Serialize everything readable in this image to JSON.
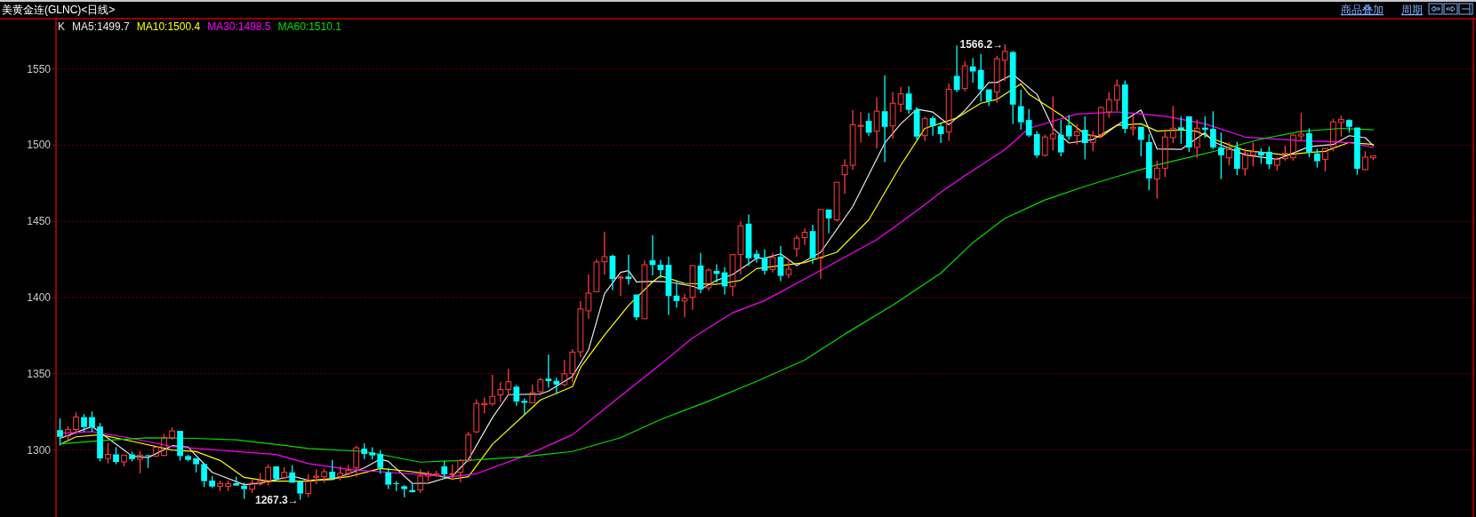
{
  "chart_data": {
    "type": "candlestick",
    "title": "美黄金连(GLNC)<日线>",
    "categories": [
      null,
      null,
      null,
      null,
      null,
      null,
      null,
      null,
      null,
      null,
      null,
      null,
      null,
      null,
      null,
      null,
      null,
      null,
      null,
      null,
      null,
      null,
      null,
      null,
      null,
      null,
      null,
      null,
      null,
      null,
      null,
      null,
      null,
      null,
      null,
      null,
      null,
      null,
      null,
      null,
      null,
      null,
      null,
      null,
      null,
      null,
      null,
      null,
      null,
      null,
      null,
      null,
      null,
      null,
      null,
      null,
      null,
      null,
      null,
      null,
      null,
      null,
      null,
      null,
      null,
      null,
      null,
      null,
      null,
      null,
      null,
      null,
      null,
      null,
      null,
      null,
      null,
      null,
      null,
      null,
      null,
      null,
      null,
      null,
      null,
      null,
      null,
      null,
      null,
      null,
      null,
      null,
      null,
      null,
      null,
      null,
      null,
      null,
      null,
      null,
      null,
      null,
      null,
      null,
      null,
      null,
      null,
      null,
      null,
      null,
      null,
      null,
      null,
      null,
      null,
      null,
      null,
      null,
      null,
      null,
      null,
      null,
      null,
      null,
      null,
      null,
      null,
      null,
      null,
      null,
      null,
      null,
      null,
      null,
      null,
      null,
      null,
      null,
      null,
      null,
      null,
      null,
      null,
      null,
      null,
      null,
      null,
      null,
      null,
      null,
      null,
      null,
      null,
      null,
      null,
      null,
      null,
      null,
      null,
      null,
      null,
      null,
      null,
      null,
      null,
      null,
      null,
      null,
      null,
      null,
      null,
      null,
      null,
      null,
      null,
      null,
      null
    ],
    "ylim": [
      1256,
      1583
    ],
    "yticks": [
      1300,
      1350,
      1400,
      1450,
      1500,
      1550
    ],
    "grid": "y",
    "legend": "top left",
    "legend_title": "K",
    "tick_labels": "y",
    "series": [
      {
        "colors": [
          "#00ffff",
          "#ff3c3c",
          "#ff3c3c",
          "#00ffff",
          "#00ffff",
          "#00ffff",
          "#ff3c3c",
          "#00ffff",
          "#ff3c3c",
          "#00ffff",
          "#ff3c3c",
          "#00ffff",
          "#ff3c3c",
          "#ff3c3c",
          "#ff3c3c",
          "#00ffff",
          "#00ffff",
          "#00ffff",
          "#00ffff",
          "#00ffff",
          "#ff3c3c",
          "#ff3c3c",
          "#00ffff",
          "#00ffff",
          "#ff3c3c",
          "#ff3c3c",
          "#ff3c3c",
          "#00ffff",
          "#ff3c3c",
          "#00ffff",
          "#00ffff",
          "#ff3c3c",
          "#ff3c3c",
          "#ff3c3c",
          "#00ffff",
          "#ff3c3c",
          "#ff3c3c",
          "#ff3c3c",
          "#00ffff",
          "#00ffff",
          "#00ffff",
          "#00ffff",
          "#00ffff",
          "#00ffff",
          "#00ffff",
          "#ff3c3c",
          "#ff3c3c",
          "#ff3c3c",
          "#00ffff",
          "#ff3c3c",
          "#ff3c3c",
          "#ff3c3c",
          "#ff3c3c",
          "#ff3c3c",
          "#ff3c3c",
          "#ff3c3c",
          "#ff3c3c",
          "#00ffff",
          "#00ffff",
          "#ff3c3c",
          "#ff3c3c",
          "#00ffff",
          "#00ffff",
          "#ff3c3c",
          "#ff3c3c",
          "#ff3c3c",
          "#ff3c3c",
          "#ff3c3c",
          "#ff3c3c",
          "#00ffff",
          "#ff3c3c",
          "#00ffff",
          "#00ffff",
          "#ff3c3c",
          "#00ffff",
          "#00ffff",
          "#00ffff",
          "#00ffff",
          "#ff3c3c",
          "#ff3c3c",
          "#00ffff",
          "#ff3c3c",
          "#00ffff",
          "#00ffff",
          "#ff3c3c",
          "#ff3c3c",
          "#00ffff",
          "#00ffff",
          "#00ffff",
          "#ff3c3c",
          "#00ffff",
          "#ff3c3c",
          "#ff3c3c",
          "#ff3c3c",
          "#00ffff",
          "#ff3c3c",
          "#00ffff",
          "#ff3c3c",
          "#ff3c3c",
          "#ff3c3c",
          "#ff3c3c",
          "#00ffff",
          "#ff3c3c",
          "#00ffff",
          "#ff3c3c",
          "#ff3c3c",
          "#00ffff",
          "#00ffff",
          "#ff3c3c",
          "#00ffff",
          "#00ffff",
          "#ff3c3c",
          "#00ffff",
          "#ff3c3c",
          "#00ffff",
          "#00ffff",
          "#00ffff",
          "#ff3c3c",
          "#ff3c3c",
          "#00ffff",
          "#00ffff",
          "#00ffff",
          "#00ffff",
          "#ff3c3c",
          "#ff3c3c",
          "#00ffff",
          "#00ffff",
          "#ff3c3c",
          "#00ffff",
          "#ff3c3c",
          "#ff3c3c",
          "#ff3c3c",
          "#ff3c3c",
          "#00ffff",
          "#ff3c3c",
          "#00ffff",
          "#00ffff",
          "#ff3c3c",
          "#ff3c3c",
          "#ff3c3c",
          "#00ffff",
          "#00ffff",
          "#ff3c3c",
          "#00ffff",
          "#00ffff",
          "#00ffff",
          "#ff3c3c",
          "#00ffff",
          "#ff3c3c",
          "#ff3c3c",
          "#00ffff",
          "#00ffff",
          "#ff3c3c",
          "#ff3c3c",
          "#ff3c3c",
          "#ff3c3c",
          "#00ffff",
          "#00ffff",
          "#ff3c3c",
          "#ff3c3c",
          "#ff3c3c",
          "#00ffff",
          "#00ffff",
          "#ff3c3c",
          "#ff3c3c",
          null,
          null,
          null,
          null,
          null,
          null,
          null,
          null,
          null,
          null,
          null,
          null
        ],
        "ohlc": [
          [
            1313.0,
            1320.8,
            1302.8,
            1308.6
          ],
          [
            1309.2,
            1315.4,
            1306.6,
            1313.4
          ],
          [
            1313.4,
            1324.7,
            1310.5,
            1321.6
          ],
          [
            1321.6,
            1323.5,
            1311.9,
            1315.0
          ],
          [
            1321.6,
            1325.2,
            1311.9,
            1314.8
          ],
          [
            1315.4,
            1317.7,
            1292.5,
            1294.4
          ],
          [
            1294.4,
            1304.7,
            1291.1,
            1297.1
          ],
          [
            1297.1,
            1301.8,
            1290.6,
            1292.1
          ],
          [
            1292.1,
            1296.6,
            1289.2,
            1296.6
          ],
          [
            1297.1,
            1298.9,
            1292.5,
            1294.0
          ],
          [
            1294.0,
            1299.3,
            1284.7,
            1296.6
          ],
          [
            1296.6,
            1296.9,
            1288.2,
            1296.0
          ],
          [
            1296.0,
            1302.2,
            1295.4,
            1301.8
          ],
          [
            1296.4,
            1310.5,
            1296.0,
            1308.2
          ],
          [
            1308.0,
            1314.8,
            1306.6,
            1312.5
          ],
          [
            1312.5,
            1312.5,
            1293.1,
            1296.0
          ],
          [
            1296.0,
            1296.9,
            1292.5,
            1293.5
          ],
          [
            1294.6,
            1294.6,
            1285.3,
            1290.6
          ],
          [
            1290.8,
            1290.8,
            1275.6,
            1279.5
          ],
          [
            1279.9,
            1282.8,
            1275.0,
            1276.0
          ],
          [
            1276.2,
            1279.9,
            1273.1,
            1278.0
          ],
          [
            1276.2,
            1279.9,
            1273.1,
            1277.8
          ],
          [
            1278.2,
            1282.4,
            1276.6,
            1276.6
          ],
          [
            1276.6,
            1278.5,
            1267.9,
            1274.3
          ],
          [
            1274.3,
            1280.9,
            1271.8,
            1278.2
          ],
          [
            1277.6,
            1284.7,
            1276.6,
            1279.5
          ],
          [
            1278.9,
            1290.6,
            1276.6,
            1288.6
          ],
          [
            1289.2,
            1289.2,
            1279.5,
            1280.9
          ],
          [
            1281.7,
            1288.6,
            1280.9,
            1285.3
          ],
          [
            1285.3,
            1289.8,
            1278.5,
            1278.5
          ],
          [
            1279.5,
            1279.5,
            1267.3,
            1271.4
          ],
          [
            1271.4,
            1284.0,
            1268.9,
            1280.1
          ],
          [
            1282.0,
            1287.3,
            1277.6,
            1282.8
          ],
          [
            1282.4,
            1287.3,
            1278.5,
            1285.7
          ],
          [
            1285.7,
            1293.5,
            1280.9,
            1281.4
          ],
          [
            1282.4,
            1289.2,
            1280.1,
            1284.7
          ],
          [
            1284.7,
            1290.2,
            1283.4,
            1286.7
          ],
          [
            1288.2,
            1302.8,
            1282.4,
            1301.4
          ],
          [
            1300.8,
            1304.3,
            1294.0,
            1297.3
          ],
          [
            1298.3,
            1301.8,
            1293.7,
            1296.4
          ],
          [
            1297.3,
            1299.9,
            1284.4,
            1288.2
          ],
          [
            1285.3,
            1288.2,
            1274.3,
            1277.2
          ],
          [
            1278.2,
            1279.5,
            1273.1,
            1277.8
          ],
          [
            1276.2,
            1277.0,
            1268.9,
            1274.3
          ],
          [
            1273.7,
            1278.0,
            1272.1,
            1272.3
          ],
          [
            1273.7,
            1287.3,
            1271.8,
            1282.8
          ],
          [
            1282.8,
            1286.3,
            1279.5,
            1284.4
          ],
          [
            1283.4,
            1286.3,
            1282.4,
            1284.4
          ],
          [
            1289.2,
            1292.7,
            1280.9,
            1284.0
          ],
          [
            1284.0,
            1290.6,
            1281.4,
            1284.4
          ],
          [
            1285.3,
            1294.0,
            1278.9,
            1293.1
          ],
          [
            1293.1,
            1311.9,
            1292.1,
            1309.9
          ],
          [
            1311.9,
            1333.2,
            1311.1,
            1330.5
          ],
          [
            1329.7,
            1334.4,
            1324.1,
            1330.5
          ],
          [
            1330.3,
            1349.3,
            1328.9,
            1335.1
          ],
          [
            1336.1,
            1344.4,
            1331.3,
            1339.6
          ],
          [
            1339.6,
            1353.2,
            1335.7,
            1344.8
          ],
          [
            1341.5,
            1342.5,
            1328.9,
            1331.8
          ],
          [
            1332.2,
            1333.8,
            1323.5,
            1330.9
          ],
          [
            1330.9,
            1342.9,
            1330.9,
            1337.6
          ],
          [
            1338.2,
            1347.3,
            1335.7,
            1346.0
          ],
          [
            1346.8,
            1362.5,
            1341.0,
            1345.2
          ],
          [
            1345.4,
            1347.3,
            1336.7,
            1342.9
          ],
          [
            1342.9,
            1359.0,
            1341.5,
            1349.9
          ],
          [
            1350.2,
            1366.1,
            1344.4,
            1364.2
          ],
          [
            1364.4,
            1397.7,
            1360.9,
            1392.5
          ],
          [
            1391.3,
            1415.1,
            1386.1,
            1402.9
          ],
          [
            1403.9,
            1425.2,
            1403.5,
            1423.3
          ],
          [
            1423.5,
            1443.2,
            1415.1,
            1426.8
          ],
          [
            1427.4,
            1428.1,
            1404.9,
            1412.2
          ],
          [
            1412.8,
            1414.6,
            1401.0,
            1413.4
          ],
          [
            1413.8,
            1428.1,
            1408.4,
            1412.2
          ],
          [
            1402.0,
            1402.0,
            1385.1,
            1387.0
          ],
          [
            1386.1,
            1424.3,
            1386.1,
            1421.5
          ],
          [
            1424.4,
            1440.9,
            1414.6,
            1421.3
          ],
          [
            1421.5,
            1424.8,
            1412.6,
            1418.0
          ],
          [
            1421.5,
            1426.8,
            1388.6,
            1401.0
          ],
          [
            1401.2,
            1410.3,
            1393.4,
            1397.7
          ],
          [
            1397.7,
            1402.5,
            1387.0,
            1399.4
          ],
          [
            1400.2,
            1421.0,
            1391.9,
            1421.0
          ],
          [
            1421.0,
            1429.3,
            1402.9,
            1405.3
          ],
          [
            1406.4,
            1419.0,
            1404.5,
            1418.0
          ],
          [
            1417.5,
            1421.9,
            1409.7,
            1415.5
          ],
          [
            1416.5,
            1420.0,
            1402.0,
            1407.4
          ],
          [
            1407.4,
            1428.7,
            1401.0,
            1428.1
          ],
          [
            1428.3,
            1450.0,
            1415.1,
            1447.1
          ],
          [
            1448.5,
            1454.5,
            1420.6,
            1425.8
          ],
          [
            1428.7,
            1431.2,
            1422.9,
            1425.8
          ],
          [
            1426.2,
            1431.6,
            1415.1,
            1417.6
          ],
          [
            1418.4,
            1429.3,
            1416.5,
            1426.2
          ],
          [
            1426.8,
            1433.9,
            1410.7,
            1414.2
          ],
          [
            1415.1,
            1425.4,
            1412.6,
            1418.6
          ],
          [
            1432.0,
            1440.9,
            1426.8,
            1439.0
          ],
          [
            1439.3,
            1445.5,
            1434.5,
            1442.8
          ],
          [
            1443.6,
            1447.7,
            1422.3,
            1425.8
          ],
          [
            1425.8,
            1457.8,
            1412.2,
            1457.8
          ],
          [
            1457.8,
            1457.8,
            1442.3,
            1451.9
          ],
          [
            1451.0,
            1475.6,
            1450.0,
            1475.6
          ],
          [
            1480.6,
            1490.7,
            1468.0,
            1486.6
          ],
          [
            1486.8,
            1523.1,
            1483.9,
            1513.4
          ],
          [
            1512.4,
            1521.7,
            1501.7,
            1513.0
          ],
          [
            1515.9,
            1521.1,
            1506.2,
            1508.1
          ],
          [
            1509.1,
            1531.4,
            1497.9,
            1522.3
          ],
          [
            1522.3,
            1545.9,
            1488.8,
            1512.0
          ],
          [
            1512.6,
            1534.7,
            1504.3,
            1527.5
          ],
          [
            1526.9,
            1538.2,
            1521.7,
            1533.7
          ],
          [
            1533.9,
            1538.6,
            1520.7,
            1523.1
          ],
          [
            1523.1,
            1525.0,
            1503.3,
            1505.6
          ],
          [
            1506.2,
            1518.8,
            1502.7,
            1517.3
          ],
          [
            1517.8,
            1519.2,
            1506.2,
            1512.6
          ],
          [
            1512.4,
            1514.9,
            1501.4,
            1507.2
          ],
          [
            1508.7,
            1540.5,
            1502.9,
            1536.6
          ],
          [
            1545.5,
            1565.4,
            1534.7,
            1536.2
          ],
          [
            1537.2,
            1555.1,
            1535.3,
            1552.1
          ],
          [
            1551.7,
            1557.0,
            1541.1,
            1548.3
          ],
          [
            1549.4,
            1559.9,
            1528.5,
            1536.6
          ],
          [
            1536.6,
            1536.7,
            1525.6,
            1528.9
          ],
          [
            1534.8,
            1558.6,
            1527.6,
            1556.7
          ],
          [
            1555.7,
            1566.2,
            1542.1,
            1561.5
          ],
          [
            1561.1,
            1561.9,
            1514.0,
            1526.6
          ],
          [
            1525.6,
            1536.3,
            1510.1,
            1515.0
          ],
          [
            1516.5,
            1523.7,
            1505.3,
            1506.3
          ],
          [
            1507.2,
            1509.2,
            1491.7,
            1493.3
          ],
          [
            1493.3,
            1506.8,
            1492.7,
            1505.3
          ],
          [
            1504.3,
            1532.0,
            1496.6,
            1507.2
          ],
          [
            1506.8,
            1516.5,
            1492.7,
            1495.2
          ],
          [
            1513.0,
            1519.8,
            1503.4,
            1505.7
          ],
          [
            1506.3,
            1514.0,
            1500.4,
            1508.8
          ],
          [
            1510.1,
            1518.9,
            1490.8,
            1501.4
          ],
          [
            1501.8,
            1509.2,
            1496.0,
            1506.3
          ],
          [
            1506.8,
            1525.1,
            1504.9,
            1524.7
          ],
          [
            1521.8,
            1534.8,
            1517.9,
            1529.9
          ],
          [
            1529.5,
            1543.1,
            1522.7,
            1539.2
          ],
          [
            1539.8,
            1542.5,
            1507.8,
            1510.7
          ],
          [
            1510.7,
            1519.2,
            1506.3,
            1511.7
          ],
          [
            1512.1,
            1512.1,
            1492.7,
            1503.4
          ],
          [
            1502.0,
            1507.2,
            1470.4,
            1478.2
          ],
          [
            1477.8,
            1489.8,
            1465.0,
            1484.9
          ],
          [
            1484.9,
            1510.1,
            1479.1,
            1505.3
          ],
          [
            1504.9,
            1525.6,
            1501.4,
            1511.1
          ],
          [
            1511.7,
            1518.9,
            1501.0,
            1510.1
          ],
          [
            1518.9,
            1518.9,
            1495.6,
            1498.5
          ],
          [
            1498.5,
            1516.9,
            1491.7,
            1511.1
          ],
          [
            1511.5,
            1518.9,
            1504.9,
            1510.1
          ],
          [
            1510.7,
            1522.2,
            1497.5,
            1498.5
          ],
          [
            1498.5,
            1508.2,
            1477.8,
            1493.3
          ],
          [
            1491.7,
            1501.8,
            1486.8,
            1497.1
          ],
          [
            1497.9,
            1502.3,
            1480.4,
            1484.5
          ],
          [
            1484.5,
            1497.9,
            1480.1,
            1494.6
          ],
          [
            1493.6,
            1501.8,
            1486.3,
            1495.6
          ],
          [
            1495.6,
            1497.9,
            1487.8,
            1493.2
          ],
          [
            1495.6,
            1499.1,
            1484.3,
            1487.4
          ],
          [
            1486.8,
            1492.1,
            1483.4,
            1490.7
          ],
          [
            1491.1,
            1499.4,
            1489.8,
            1494.6
          ],
          [
            1491.7,
            1507.2,
            1489.8,
            1506.6
          ],
          [
            1506.0,
            1521.1,
            1503.3,
            1507.2
          ],
          [
            1507.8,
            1511.1,
            1492.1,
            1495.0
          ],
          [
            1494.6,
            1497.5,
            1485.3,
            1489.4
          ],
          [
            1490.7,
            1497.9,
            1482.9,
            1497.9
          ],
          [
            1498.5,
            1517.3,
            1495.9,
            1515.3
          ],
          [
            1514.9,
            1519.4,
            1505.6,
            1516.9
          ],
          [
            1516.5,
            1516.9,
            1508.2,
            1512.0
          ],
          [
            1511.6,
            1511.6,
            1480.6,
            1484.5
          ],
          [
            1484.0,
            1496.0,
            1483.4,
            1492.1
          ],
          [
            1491.7,
            1493.0,
            1490.3,
            1493.0
          ],
          null,
          null,
          null,
          null,
          null,
          null,
          null,
          null,
          null,
          null,
          null,
          null
        ]
      },
      {
        "type": "line",
        "name": "MA5:1499.7",
        "color": "#e8e8e8",
        "values": [
          1307.6,
          null,
          null,
          null,
          1315.4,
          1311.5,
          null,
          null,
          null,
          1296,
          null,
          1295,
          null,
          null,
          1302.8,
          null,
          1301.8,
          null,
          null,
          1285.3,
          null,
          null,
          null,
          1277.2,
          null,
          1278.2,
          null,
          null,
          null,
          1282.8,
          null,
          1280.1,
          null,
          null,
          1280.5,
          null,
          null,
          null,
          1288.2,
          null,
          1294,
          1292.5,
          null,
          null,
          1278,
          null,
          1278.2,
          null,
          null,
          1282.8,
          null,
          1293.7,
          null,
          null,
          1321.2,
          null,
          1336.3,
          null,
          null,
          null,
          1336.7,
          1338.6,
          null,
          null,
          1348.3,
          null,
          1365.7,
          null,
          1402.5,
          null,
          1416.5,
          1417.7,
          1410.3,
          null,
          1410.7,
          null,
          1410.3,
          null,
          null,
          1407.4,
          1405.5,
          null,
          1411.3,
          null,
          1415.1,
          null,
          null,
          1425.8,
          1425.8,
          null,
          1428.7,
          null,
          1420.9,
          null,
          null,
          1429.7,
          null,
          null,
          null,
          1459.7,
          null,
          null,
          null,
          1501.4,
          null,
          1514,
          null,
          1523.6,
          null,
          1521.7,
          null,
          1513.4,
          null,
          1522.7,
          null,
          null,
          1541.1,
          1541.1,
          null,
          1546.4,
          null,
          null,
          1533.4,
          null,
          1511.1,
          null,
          1501.4,
          null,
          null,
          1503.7,
          null,
          null,
          1513,
          null,
          null,
          1523.1,
          null,
          1497.5,
          null,
          null,
          1497.2,
          null,
          null,
          1508.2,
          1502.3,
          null,
          null,
          null,
          1493.6,
          null,
          null,
          null,
          1490.7,
          1492.7,
          null,
          null,
          1499,
          null,
          null,
          1500.4,
          null,
          1506.2,
          null,
          1504.9,
          1499.7,
          null,
          null,
          null,
          null,
          null,
          null,
          null,
          null,
          null,
          null,
          null,
          null
        ]
      },
      {
        "type": "line",
        "name": "MA10:1500.4",
        "color": "#ffff00",
        "values": [
          1303.7,
          null,
          1308.6,
          null,
          null,
          1310,
          null,
          null,
          null,
          1305.7,
          null,
          null,
          null,
          null,
          1299.9,
          null,
          null,
          1298.9,
          null,
          null,
          1293.1,
          null,
          null,
          1282,
          null,
          null,
          1279.5,
          null,
          null,
          null,
          null,
          1279.5,
          null,
          null,
          null,
          null,
          1282.4,
          null,
          null,
          null,
          1287.8,
          null,
          null,
          1286.3,
          null,
          null,
          1284.4,
          null,
          null,
          1280.9,
          null,
          1282.4,
          null,
          null,
          1303.7,
          null,
          null,
          null,
          null,
          null,
          1332.8,
          null,
          null,
          null,
          1341.5,
          1354.1,
          null,
          null,
          1375.4,
          null,
          null,
          1394.8,
          null,
          null,
          1410.3,
          1414.2,
          null,
          null,
          1409.3,
          null,
          null,
          null,
          1408.7,
          null,
          null,
          1411.3,
          null,
          1419,
          null,
          null,
          null,
          null,
          null,
          1422.9,
          null,
          null,
          null,
          1429.7,
          null,
          null,
          null,
          1451,
          null,
          null,
          null,
          1486.8,
          null,
          null,
          1511,
          null,
          null,
          null,
          1517.8,
          null,
          null,
          1527.5,
          null,
          1530,
          null,
          null,
          1540.2,
          1533.4,
          null,
          null,
          null,
          1519.8,
          null,
          null,
          1507.2,
          null,
          1505.3,
          null,
          1513,
          null,
          null,
          1514,
          null,
          1509.2,
          null,
          null,
          1510.1,
          null,
          1509,
          null,
          1504,
          null,
          null,
          null,
          1496.5,
          null,
          null,
          null,
          null,
          1493.6,
          null,
          null,
          1495.2,
          null,
          1495.9,
          null,
          null,
          1501.8,
          null,
          null,
          1500.4,
          null,
          null,
          null,
          null,
          null,
          null,
          null,
          null,
          null,
          null,
          null,
          null
        ]
      },
      {
        "type": "line",
        "name": "MA30:1498.5",
        "color": "#ff00ff",
        "values": [
          1311,
          null,
          null,
          null,
          1312,
          null,
          null,
          null,
          null,
          1307.6,
          null,
          null,
          null,
          null,
          1302.2,
          null,
          null,
          null,
          null,
          1300.2,
          null,
          null,
          null,
          null,
          null,
          null,
          null,
          1297,
          null,
          null,
          null,
          1291,
          null,
          null,
          null,
          null,
          1287.3,
          null,
          null,
          null,
          null,
          1285.3,
          null,
          null,
          null,
          null,
          null,
          null,
          null,
          1282.4,
          null,
          null,
          1284.4,
          null,
          null,
          null,
          null,
          null,
          1296,
          null,
          null,
          null,
          null,
          null,
          1310,
          null,
          null,
          null,
          1327,
          null,
          null,
          null,
          null,
          null,
          1352,
          null,
          null,
          null,
          null,
          1373.5,
          null,
          null,
          null,
          null,
          1390,
          null,
          null,
          null,
          1398,
          null,
          null,
          null,
          null,
          null,
          1415,
          null,
          null,
          null,
          null,
          null,
          null,
          null,
          1438,
          null,
          null,
          null,
          null,
          1457,
          null,
          null,
          1469,
          null,
          null,
          1480,
          null,
          null,
          null,
          null,
          1497,
          null,
          null,
          1511,
          null,
          null,
          null,
          null,
          null,
          1520.4,
          null,
          null,
          null,
          null,
          1521.8,
          null,
          null,
          null,
          null,
          null,
          1519,
          null,
          null,
          null,
          null,
          1514,
          null,
          null,
          null,
          null,
          1505.3,
          null,
          null,
          null,
          null,
          null,
          null,
          1502.9,
          null,
          null,
          null,
          null,
          null,
          1501.8,
          null,
          null,
          1498.5,
          null,
          null,
          null,
          null,
          null,
          null,
          null,
          null,
          null,
          null,
          null,
          null
        ]
      },
      {
        "type": "line",
        "name": "MA60:1510.1",
        "color": "#00e000",
        "values": [
          1304,
          null,
          null,
          null,
          null,
          1306,
          null,
          null,
          null,
          null,
          null,
          1308,
          null,
          null,
          null,
          null,
          null,
          1307.6,
          null,
          null,
          null,
          null,
          1306.6,
          null,
          null,
          null,
          null,
          null,
          1303,
          null,
          null,
          1301,
          null,
          null,
          null,
          null,
          null,
          null,
          1299,
          null,
          null,
          null,
          null,
          null,
          null,
          1292,
          null,
          null,
          null,
          null,
          null,
          null,
          1293.5,
          null,
          null,
          null,
          null,
          null,
          1295.6,
          null,
          null,
          null,
          null,
          null,
          1299,
          null,
          null,
          null,
          null,
          null,
          1308,
          null,
          null,
          null,
          null,
          1320,
          null,
          null,
          null,
          null,
          null,
          1332,
          null,
          null,
          null,
          null,
          null,
          1345,
          null,
          null,
          null,
          null,
          null,
          1359,
          null,
          null,
          null,
          null,
          1376,
          null,
          null,
          null,
          null,
          null,
          1395,
          null,
          null,
          null,
          null,
          null,
          1416,
          null,
          null,
          null,
          1436,
          null,
          null,
          null,
          1452,
          null,
          null,
          null,
          null,
          1464,
          null,
          null,
          null,
          null,
          1473,
          null,
          null,
          null,
          null,
          1481,
          null,
          null,
          null,
          1487,
          null,
          null,
          null,
          1492,
          null,
          null,
          null,
          1497,
          null,
          null,
          null,
          null,
          1504,
          null,
          null,
          null,
          null,
          1509,
          null,
          null,
          null,
          null,
          1511,
          null,
          null,
          null,
          1510.1,
          null,
          null,
          null,
          null,
          null,
          null,
          null,
          null,
          null,
          null,
          null,
          null
        ]
      }
    ],
    "annotations": [
      "1566.2→",
      "1267.3→",
      "商品叠加",
      "周期"
    ]
  }
}
